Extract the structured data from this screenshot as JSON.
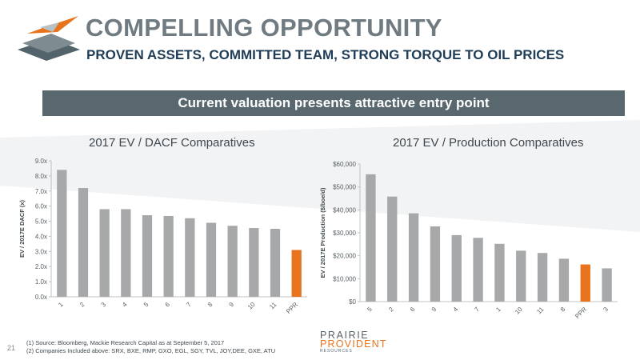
{
  "header": {
    "title": "COMPELLING OPPORTUNITY",
    "subtitle": "PROVEN ASSETS, COMMITTED TEAM, STRONG TORQUE TO OIL PRICES"
  },
  "banner": "Current valuation presents attractive entry point",
  "colors": {
    "bar_gray": "#a6a8aa",
    "highlight_orange": "#e8731d",
    "banner_bg": "#59686f",
    "title_gray": "#6f7a81",
    "subtitle_navy": "#1f3d57"
  },
  "chart_data": [
    {
      "type": "bar",
      "title": "2017 EV / DACF Comparatives",
      "ylabel": "EV / 2017E DACF (x)",
      "xlabel": "",
      "categories": [
        "1",
        "2",
        "3",
        "4",
        "5",
        "6",
        "7",
        "8",
        "9",
        "10",
        "11",
        "PPR"
      ],
      "values": [
        8.4,
        7.2,
        5.8,
        5.8,
        5.4,
        5.35,
        5.2,
        4.9,
        4.7,
        4.55,
        4.5,
        3.1
      ],
      "highlight": "PPR",
      "ylim": [
        0,
        9
      ],
      "yticks": [
        "0.0x",
        "1.0x",
        "2.0x",
        "3.0x",
        "4.0x",
        "5.0x",
        "6.0x",
        "7.0x",
        "8.0x",
        "9.0x"
      ],
      "grid": false
    },
    {
      "type": "bar",
      "title": "2017 EV / Production Comparatives",
      "ylabel": "EV / 2017E Production ($/boe/d)",
      "xlabel": "",
      "categories": [
        "5",
        "2",
        "6",
        "9",
        "4",
        "7",
        "1",
        "10",
        "11",
        "8",
        "PPR",
        "3"
      ],
      "values": [
        55500,
        45800,
        38500,
        32800,
        29000,
        27800,
        25200,
        22200,
        21200,
        18700,
        16200,
        14500
      ],
      "highlight": "PPR",
      "ylim": [
        0,
        60000
      ],
      "yticks": [
        "$0",
        "$10,000",
        "$20,000",
        "$30,000",
        "$40,000",
        "$50,000",
        "$60,000"
      ],
      "grid": false
    }
  ],
  "footnotes": [
    "(1)  Source: Bloomberg, Mackie Research Capital as at September 5, 2017",
    "(2)  Companies Included above: SRX, BXE, RMP, GXO, EGL, SGY, TVL, JOY,DEE, GXE, ATU"
  ],
  "page_number": "21",
  "brand": {
    "line1": "PRAIRIE",
    "line2": "PROVIDENT",
    "line3": "RESOURCES"
  }
}
